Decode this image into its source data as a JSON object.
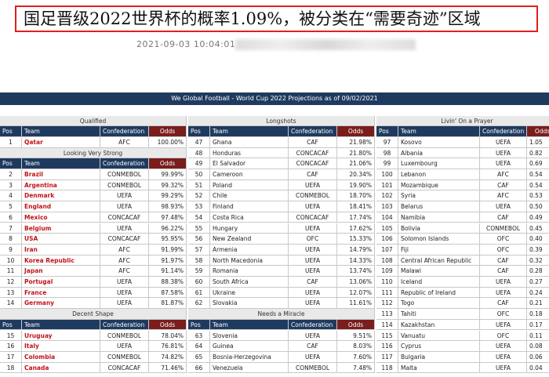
{
  "header": {
    "title": "国足晋级2022世界杯的概率1.09%，被分类在“需要奇迹”区域",
    "date": "2021-09-03 10:04:01"
  },
  "table": {
    "title": "We Global Football - World Cup 2022 Projections as of 09/02/2021",
    "columns": [
      "Pos",
      "Team",
      "Confederation",
      "Odds"
    ],
    "groups": [
      {
        "sections": [
          {
            "title": "Qualified",
            "rows": [
              [
                1,
                "Qatar",
                "AFC",
                "100.00%"
              ]
            ]
          },
          {
            "title": "Looking Very Strong",
            "rows": [
              [
                2,
                "Brazil",
                "CONMEBOL",
                "99.99%"
              ],
              [
                3,
                "Argentina",
                "CONMEBOL",
                "99.32%"
              ],
              [
                4,
                "Denmark",
                "UEFA",
                "99.29%"
              ],
              [
                5,
                "England",
                "UEFA",
                "98.93%"
              ],
              [
                6,
                "Mexico",
                "CONCACAF",
                "97.48%"
              ],
              [
                7,
                "Belgium",
                "UEFA",
                "96.22%"
              ],
              [
                8,
                "USA",
                "CONCACAF",
                "95.95%"
              ],
              [
                9,
                "Iran",
                "AFC",
                "91.99%"
              ],
              [
                10,
                "Korea Republic",
                "AFC",
                "91.97%"
              ],
              [
                11,
                "Japan",
                "AFC",
                "91.14%"
              ],
              [
                12,
                "Portugal",
                "UEFA",
                "88.38%"
              ],
              [
                13,
                "France",
                "UEFA",
                "87.58%"
              ],
              [
                14,
                "Germany",
                "UEFA",
                "81.87%"
              ]
            ]
          },
          {
            "title": "Decent Shape",
            "rows": [
              [
                15,
                "Uruguay",
                "CONMEBOL",
                "78.04%"
              ],
              [
                16,
                "Italy",
                "UEFA",
                "76.81%"
              ],
              [
                17,
                "Colombia",
                "CONMEBOL",
                "74.82%"
              ],
              [
                18,
                "Canada",
                "CONCACAF",
                "71.46%"
              ]
            ]
          }
        ]
      },
      {
        "sections": [
          {
            "title": "Longshots",
            "rows": [
              [
                47,
                "Ghana",
                "CAF",
                "21.98%"
              ],
              [
                48,
                "Honduras",
                "CONCACAF",
                "21.80%"
              ],
              [
                49,
                "El Salvador",
                "CONCACAF",
                "21.06%"
              ],
              [
                50,
                "Cameroon",
                "CAF",
                "20.34%"
              ],
              [
                51,
                "Poland",
                "UEFA",
                "19.90%"
              ],
              [
                52,
                "Chile",
                "CONMEBOL",
                "18.70%"
              ],
              [
                53,
                "Finland",
                "UEFA",
                "18.41%"
              ],
              [
                54,
                "Costa Rica",
                "CONCACAF",
                "17.74%"
              ],
              [
                55,
                "Hungary",
                "UEFA",
                "17.62%"
              ],
              [
                56,
                "New Zealand",
                "OFC",
                "15.33%"
              ],
              [
                57,
                "Armenia",
                "UEFA",
                "14.79%"
              ],
              [
                58,
                "North Macedonia",
                "UEFA",
                "14.33%"
              ],
              [
                59,
                "Romania",
                "UEFA",
                "13.74%"
              ],
              [
                60,
                "South Africa",
                "CAF",
                "13.06%"
              ],
              [
                61,
                "Ukraine",
                "UEFA",
                "12.07%"
              ],
              [
                62,
                "Slovakia",
                "UEFA",
                "11.61%"
              ]
            ]
          },
          {
            "title": "Needs a Miracle",
            "rows": [
              [
                63,
                "Slovenia",
                "UEFA",
                "9.51%"
              ],
              [
                64,
                "Guinea",
                "CAF",
                "8.03%"
              ],
              [
                65,
                "Bosnia-Herzegovina",
                "UEFA",
                "7.60%"
              ],
              [
                66,
                "Venezuela",
                "CONMEBOL",
                "7.48%"
              ]
            ]
          }
        ]
      },
      {
        "sections": [
          {
            "title": "Livin' On a Prayer",
            "rows": [
              [
                97,
                "Kosovo",
                "UEFA",
                "1.05"
              ],
              [
                98,
                "Albania",
                "UEFA",
                "0.82"
              ],
              [
                99,
                "Luxembourg",
                "UEFA",
                "0.69"
              ],
              [
                100,
                "Lebanon",
                "AFC",
                "0.54"
              ],
              [
                101,
                "Mozambique",
                "CAF",
                "0.54"
              ],
              [
                102,
                "Syria",
                "AFC",
                "0.53"
              ],
              [
                103,
                "Belarus",
                "UEFA",
                "0.50"
              ],
              [
                104,
                "Namibia",
                "CAF",
                "0.49"
              ],
              [
                105,
                "Bolivia",
                "CONMEBOL",
                "0.45"
              ],
              [
                106,
                "Solomon Islands",
                "OFC",
                "0.40"
              ],
              [
                107,
                "Fiji",
                "OFC",
                "0.39"
              ],
              [
                108,
                "Central African Republic",
                "CAF",
                "0.32"
              ],
              [
                109,
                "Malawi",
                "CAF",
                "0.28"
              ],
              [
                110,
                "Iceland",
                "UEFA",
                "0.27"
              ],
              [
                111,
                "Republic of Ireland",
                "UEFA",
                "0.24"
              ],
              [
                112,
                "Togo",
                "CAF",
                "0.21"
              ],
              [
                113,
                "Tahiti",
                "OFC",
                "0.18"
              ],
              [
                114,
                "Kazakhstan",
                "UEFA",
                "0.17"
              ],
              [
                115,
                "Vanuatu",
                "OFC",
                "0.11"
              ],
              [
                116,
                "Cyprus",
                "UEFA",
                "0.08"
              ],
              [
                117,
                "Bulgaria",
                "UEFA",
                "0.06"
              ],
              [
                118,
                "Malta",
                "UEFA",
                "0.04"
              ]
            ]
          }
        ]
      }
    ]
  }
}
